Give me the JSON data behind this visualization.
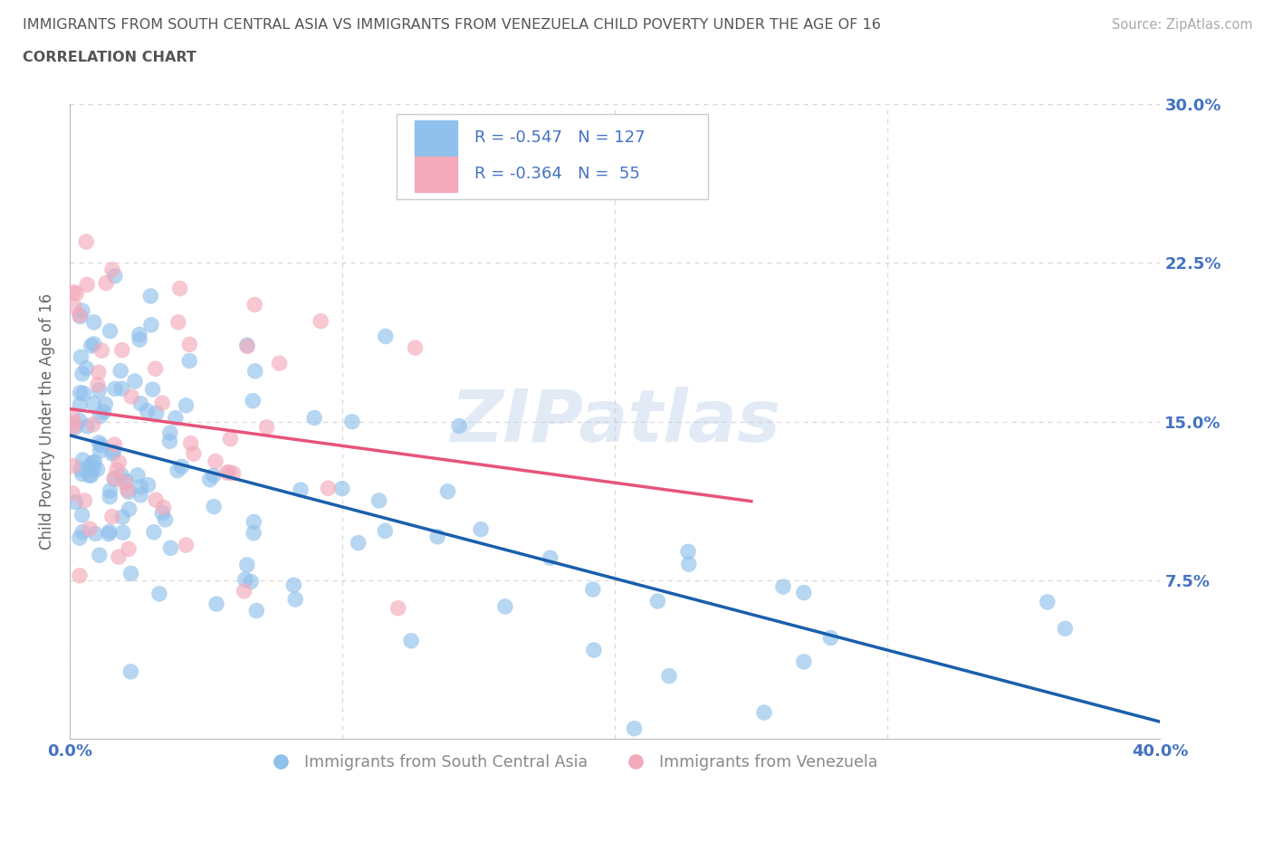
{
  "title1": "IMMIGRANTS FROM SOUTH CENTRAL ASIA VS IMMIGRANTS FROM VENEZUELA CHILD POVERTY UNDER THE AGE OF 16",
  "title2": "CORRELATION CHART",
  "source": "Source: ZipAtlas.com",
  "ylabel": "Child Poverty Under the Age of 16",
  "xlim": [
    0.0,
    0.4
  ],
  "ylim": [
    0.0,
    0.3
  ],
  "yticks": [
    0.0,
    0.075,
    0.15,
    0.225,
    0.3
  ],
  "ytick_labels_right": [
    "",
    "7.5%",
    "15.0%",
    "22.5%",
    "30.0%"
  ],
  "xticks": [
    0.0,
    0.1,
    0.2,
    0.3,
    0.4
  ],
  "xtick_labels": [
    "0.0%",
    "",
    "",
    "",
    "40.0%"
  ],
  "blue_color": "#90C0EC",
  "pink_color": "#F4AABB",
  "blue_line_color": "#1A5FAB",
  "pink_line_color": "#E8547A",
  "blue_R": -0.547,
  "blue_N": 127,
  "pink_R": -0.364,
  "pink_N": 55,
  "legend_label_blue": "Immigrants from South Central Asia",
  "legend_label_pink": "Immigrants from Venezuela",
  "watermark": "ZIPatlas",
  "background_color": "#ffffff",
  "grid_color": "#d8d8d8",
  "title_color": "#555555",
  "axis_tick_color": "#4472C4",
  "legend_text_color": "#4472C4",
  "source_color": "#aaaaaa",
  "ylabel_color": "#666666"
}
